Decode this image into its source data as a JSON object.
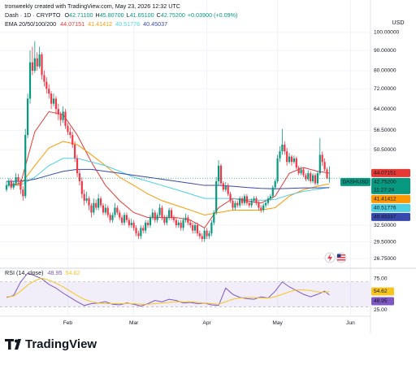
{
  "chart_data": {
    "type": "candlestick",
    "header": {
      "credit": "tronweekly created with TradingView.com, May 23, 2026 12:32 UTC",
      "symbol": "Dash · 1D · CRYPTO",
      "ohlc": [
        {
          "label": "O",
          "text": "42.71100"
        },
        {
          "label": "H",
          "text": "45.80700"
        },
        {
          "label": "L",
          "text": "41.65100"
        },
        {
          "label": "C",
          "text": "42.75200"
        }
      ],
      "change": "+0.03900 (+0.09%)"
    },
    "currency": "USD",
    "ticker": "DASHUSD",
    "last_price_label": "42.75200",
    "countdown": "11:27:24",
    "up_color": "#089981",
    "down_color": "#f23645",
    "log_scale": true,
    "grid": true,
    "xlim": [
      -2.76,
      154.1
    ],
    "ylim": [
      25.9,
      104.8
    ],
    "yticks": [
      {
        "value": 100,
        "label": "100.00000"
      },
      {
        "value": 90,
        "label": "90.00000"
      },
      {
        "value": 80,
        "label": "80.00000"
      },
      {
        "value": 72,
        "label": "72.00000"
      },
      {
        "value": 64,
        "label": "64.00000"
      },
      {
        "value": 56.5,
        "label": "56.50000"
      },
      {
        "value": 50.5,
        "label": "50.50000"
      },
      {
        "value": 32.5,
        "label": "32.50000"
      },
      {
        "value": 29.5,
        "label": "29.50000"
      },
      {
        "value": 26.75,
        "label": "26.75000"
      }
    ],
    "xticks": [
      {
        "value": 26,
        "label": "Feb"
      },
      {
        "value": 54,
        "label": "Mar"
      },
      {
        "value": 85,
        "label": "Apr"
      },
      {
        "value": 115,
        "label": "May"
      },
      {
        "value": 146,
        "label": "Jun"
      }
    ],
    "ohlc": [
      [
        40,
        42,
        39.5,
        41
      ],
      [
        41,
        42.8,
        40.5,
        42
      ],
      [
        42,
        42.6,
        40,
        40.5
      ],
      [
        40.5,
        42,
        40,
        41.5
      ],
      [
        41.5,
        44,
        41,
        43
      ],
      [
        43,
        43.8,
        41.5,
        42
      ],
      [
        42,
        42.5,
        39,
        40
      ],
      [
        40,
        40.8,
        37.5,
        38.5
      ],
      [
        38.5,
        57,
        38,
        55
      ],
      [
        55,
        70,
        54,
        68
      ],
      [
        68,
        90,
        66,
        84
      ],
      [
        84,
        92,
        78,
        80
      ],
      [
        80,
        95,
        79,
        86
      ],
      [
        86,
        89,
        80,
        82
      ],
      [
        82,
        92,
        81,
        88
      ],
      [
        88,
        89,
        76,
        78
      ],
      [
        78,
        80,
        73,
        75
      ],
      [
        75,
        77,
        70,
        72
      ],
      [
        72,
        74,
        68,
        70
      ],
      [
        70,
        71,
        64,
        66
      ],
      [
        66,
        70,
        65,
        68
      ],
      [
        68,
        69,
        62,
        64
      ],
      [
        64,
        66,
        60,
        62
      ],
      [
        62,
        63,
        58,
        60
      ],
      [
        60,
        65,
        59,
        63
      ],
      [
        63,
        64,
        57,
        58
      ],
      [
        58,
        59,
        55,
        56
      ],
      [
        56,
        57.5,
        54,
        55
      ],
      [
        55,
        56,
        51,
        52
      ],
      [
        52,
        53,
        47,
        48
      ],
      [
        48,
        49,
        43,
        44
      ],
      [
        44,
        45,
        41,
        42
      ],
      [
        42,
        43,
        38,
        39
      ],
      [
        39,
        40,
        36.5,
        37.5
      ],
      [
        37.5,
        39.5,
        37,
        38
      ],
      [
        38,
        38.5,
        35.5,
        36.5
      ],
      [
        36.5,
        37,
        34,
        35
      ],
      [
        35,
        38,
        34.5,
        37
      ],
      [
        37,
        37.8,
        35.5,
        36
      ],
      [
        36,
        39,
        35.5,
        38
      ],
      [
        38,
        38.5,
        36,
        36.5
      ],
      [
        36.5,
        37,
        34.5,
        35
      ],
      [
        35,
        36.8,
        34.5,
        36
      ],
      [
        36,
        36.5,
        34,
        34.5
      ],
      [
        34.5,
        35,
        33,
        33.5
      ],
      [
        33.5,
        35,
        33,
        34.5
      ],
      [
        34.5,
        37,
        34,
        36
      ],
      [
        36,
        36.5,
        34.5,
        35
      ],
      [
        35,
        35.5,
        33.5,
        34
      ],
      [
        34,
        34.5,
        32.5,
        33
      ],
      [
        33,
        35,
        32.5,
        34.5
      ],
      [
        34.5,
        35,
        33,
        33.5
      ],
      [
        33.5,
        34,
        32,
        32.5
      ],
      [
        32.5,
        33.8,
        32,
        33
      ],
      [
        33,
        33.5,
        31.5,
        32
      ],
      [
        32,
        32.5,
        30.5,
        31
      ],
      [
        31,
        31.5,
        30,
        30.5
      ],
      [
        30.5,
        32.5,
        30,
        32
      ],
      [
        32,
        32.5,
        31,
        31.5
      ],
      [
        31.5,
        33.5,
        31,
        33
      ],
      [
        33,
        33.5,
        32,
        32.5
      ],
      [
        32.5,
        34.5,
        32,
        34
      ],
      [
        34,
        35.8,
        33.5,
        35
      ],
      [
        35,
        35.5,
        33,
        33.5
      ],
      [
        33.5,
        35,
        33,
        34.5
      ],
      [
        34.5,
        36.8,
        34,
        36
      ],
      [
        36,
        36.5,
        33.5,
        34
      ],
      [
        34,
        34.5,
        32.5,
        33
      ],
      [
        33,
        34.5,
        32.5,
        34
      ],
      [
        34,
        36,
        33.5,
        35.5
      ],
      [
        35.5,
        36,
        33.5,
        34
      ],
      [
        34,
        34.5,
        33,
        33.5
      ],
      [
        33.5,
        34,
        32,
        32.5
      ],
      [
        32.5,
        33.5,
        32,
        33
      ],
      [
        33,
        33.5,
        31.5,
        32
      ],
      [
        32,
        34,
        31.5,
        33.5
      ],
      [
        33.5,
        34.8,
        33,
        34
      ],
      [
        34,
        34.5,
        32.5,
        33
      ],
      [
        33,
        33.5,
        32,
        32.5
      ],
      [
        32.5,
        33,
        31,
        31.5
      ],
      [
        31.5,
        33,
        31,
        32.5
      ],
      [
        32.5,
        33,
        30.5,
        31
      ],
      [
        31,
        31.5,
        30,
        30.5
      ],
      [
        30.5,
        31,
        29.5,
        30
      ],
      [
        30,
        32,
        29.5,
        31.5
      ],
      [
        31.5,
        32,
        30,
        30.5
      ],
      [
        30.5,
        31.5,
        30,
        31
      ],
      [
        31,
        33.5,
        30.5,
        33
      ],
      [
        33,
        35.5,
        32.5,
        35
      ],
      [
        35,
        43,
        34.5,
        42
      ],
      [
        42,
        47.5,
        41,
        46
      ],
      [
        46,
        46.5,
        41,
        41.5
      ],
      [
        41.5,
        42,
        39.5,
        40
      ],
      [
        40,
        41.8,
        39.5,
        41
      ],
      [
        41,
        41.5,
        38.5,
        39
      ],
      [
        39,
        39.5,
        37,
        37.5
      ],
      [
        37.5,
        38,
        35.5,
        36
      ],
      [
        36,
        37.5,
        35.5,
        37
      ],
      [
        37,
        37.5,
        36,
        36.5
      ],
      [
        36.5,
        38.5,
        36,
        38
      ],
      [
        38,
        38.5,
        36.5,
        37
      ],
      [
        37,
        39,
        36.5,
        38.5
      ],
      [
        38.5,
        39,
        36.5,
        37
      ],
      [
        37,
        37.5,
        36,
        36.5
      ],
      [
        36.5,
        38,
        36,
        37.5
      ],
      [
        37.5,
        38.5,
        37,
        38
      ],
      [
        38,
        38.5,
        36.5,
        37
      ],
      [
        37,
        37.5,
        35.5,
        36
      ],
      [
        36,
        36.5,
        35,
        35.5
      ],
      [
        35.5,
        37,
        35,
        36.5
      ],
      [
        36.5,
        37.5,
        36,
        37
      ],
      [
        37,
        38.5,
        36.5,
        38
      ],
      [
        38,
        39,
        37.5,
        38.5
      ],
      [
        38.5,
        41,
        38,
        40.5
      ],
      [
        40.5,
        42.5,
        40,
        42
      ],
      [
        42,
        49,
        41.5,
        48
      ],
      [
        48,
        51.5,
        47,
        50
      ],
      [
        50,
        57,
        49,
        52
      ],
      [
        52,
        53,
        49,
        50
      ],
      [
        50,
        51,
        46,
        47
      ],
      [
        47,
        49.5,
        46.5,
        48.5
      ],
      [
        48.5,
        49,
        46,
        47
      ],
      [
        47,
        48.8,
        46.5,
        48
      ],
      [
        48,
        48.5,
        45,
        45.5
      ],
      [
        45.5,
        46,
        43.5,
        44
      ],
      [
        44,
        45.8,
        43.5,
        45
      ],
      [
        45,
        45.5,
        43,
        43.5
      ],
      [
        43.5,
        44,
        42,
        42.5
      ],
      [
        42.5,
        44.8,
        42,
        44
      ],
      [
        44,
        44.5,
        41.5,
        42
      ],
      [
        42,
        44,
        41.5,
        43.5
      ],
      [
        43.5,
        44,
        41,
        41.5
      ],
      [
        41.5,
        44.5,
        41,
        44
      ],
      [
        44,
        54,
        43.5,
        49
      ],
      [
        49,
        50,
        46,
        47
      ],
      [
        47,
        48,
        44.5,
        45
      ],
      [
        45,
        45.5,
        42.5,
        42.713
      ],
      [
        42.711,
        45.807,
        41.651,
        42.752
      ]
    ],
    "ema": {
      "title": "EMA 20/50/100/200",
      "x": [
        0,
        6,
        12,
        18,
        24,
        30,
        36,
        42,
        48,
        54,
        60,
        66,
        72,
        78,
        84,
        90,
        96,
        102,
        108,
        114,
        120,
        126,
        132,
        137
      ],
      "series": [
        {
          "color": "#e53935",
          "values": [
            41,
            41.5,
            56,
            63,
            62,
            55,
            47,
            41,
            37.5,
            35,
            34,
            34,
            34,
            33.5,
            32,
            36,
            38,
            37.5,
            37,
            38.5,
            44,
            45.5,
            44.5,
            44.07151
          ]
        },
        {
          "color": "#ff9800",
          "values": [
            41,
            41.2,
            46,
            51,
            53,
            52,
            49,
            46,
            43,
            41,
            39,
            37.5,
            36.5,
            35.5,
            34.5,
            35,
            35.5,
            35.5,
            35.5,
            36,
            38.5,
            40,
            40.8,
            41.41412
          ]
        },
        {
          "color": "#4dd0e1",
          "values": [
            41,
            41,
            43,
            46,
            48,
            48,
            47,
            46,
            44.5,
            43,
            42,
            41,
            40,
            39,
            38,
            38,
            38,
            37.8,
            37.6,
            37.8,
            38.8,
            39.6,
            40.1,
            40.51776
          ]
        },
        {
          "color": "#3949ab",
          "values": [
            42,
            42,
            42.5,
            43.5,
            44.5,
            45,
            45,
            44.5,
            44,
            43.5,
            43,
            42.5,
            42,
            41.5,
            41,
            41,
            40.8,
            40.5,
            40.3,
            40.2,
            40.3,
            40.4,
            40.42,
            40.45037
          ]
        }
      ]
    },
    "rsi": {
      "title": "RSI (14, close)",
      "ylim": [
        16,
        88
      ],
      "yticks": [
        {
          "value": 75,
          "label": "75.00"
        },
        {
          "value": 25,
          "label": "25.00"
        }
      ],
      "band": [
        30,
        70
      ],
      "band_color": "#7e57c2",
      "x": [
        0,
        3,
        6,
        9,
        12,
        15,
        18,
        21,
        24,
        27,
        30,
        33,
        36,
        39,
        42,
        45,
        48,
        51,
        54,
        57,
        60,
        63,
        66,
        69,
        72,
        75,
        78,
        81,
        84,
        87,
        90,
        93,
        96,
        99,
        102,
        105,
        108,
        111,
        114,
        117,
        120,
        123,
        126,
        129,
        132,
        135,
        137
      ],
      "series": [
        {
          "color": "#7e57c2",
          "values": [
            45,
            48,
            70,
            84,
            80,
            75,
            66,
            60,
            52,
            45,
            38,
            32,
            35,
            36,
            38,
            34,
            33,
            36,
            34,
            31,
            35,
            40,
            38,
            42,
            40,
            36,
            37,
            35,
            36,
            33,
            32,
            60,
            50,
            45,
            43,
            42,
            46,
            44,
            55,
            70,
            62,
            56,
            50,
            46,
            50,
            55,
            48.95
          ]
        },
        {
          "color": "#f7c520",
          "values": [
            46,
            47,
            55,
            65,
            72,
            76,
            73,
            68,
            62,
            55,
            48,
            42,
            38,
            36,
            35,
            35,
            35,
            35,
            35,
            34,
            34,
            35,
            36,
            37,
            38,
            38,
            38,
            37,
            36,
            35,
            34,
            38,
            42,
            44,
            45,
            45,
            44,
            44,
            46,
            50,
            54,
            57,
            57,
            56,
            54,
            53,
            54.62
          ]
        }
      ]
    },
    "brand": "TradingView"
  }
}
